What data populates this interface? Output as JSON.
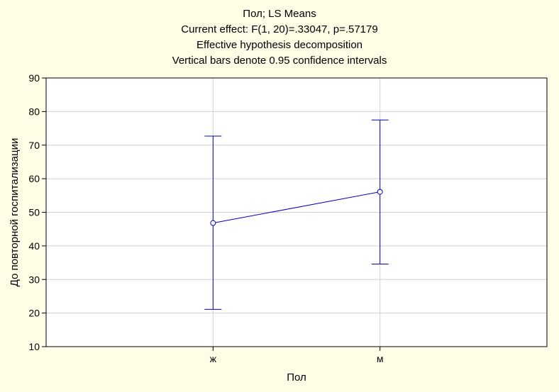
{
  "chart_data": {
    "type": "line",
    "title": [
      "Пол; LS Means",
      "Current effect: F(1, 20)=.33047, p=.57179",
      "Effective hypothesis decomposition",
      "Vertical bars denote 0.95 confidence intervals"
    ],
    "xlabel": "Пол",
    "ylabel": "До повторной госпитализации",
    "categories": [
      "ж",
      "м"
    ],
    "series": [
      {
        "values": [
          46.8,
          56.1
        ],
        "ci_lower": [
          21.1,
          34.6
        ],
        "ci_upper": [
          72.7,
          77.5
        ]
      }
    ],
    "ylim": [
      10,
      90
    ],
    "yticks": [
      10,
      20,
      30,
      40,
      50,
      60,
      70,
      80,
      90
    ],
    "grid": true,
    "colors": {
      "background": "#fefee6",
      "plot_background": "#ffffff",
      "series": "#0000c0",
      "grid": "#d0d0d0",
      "axis": "#000000"
    }
  }
}
